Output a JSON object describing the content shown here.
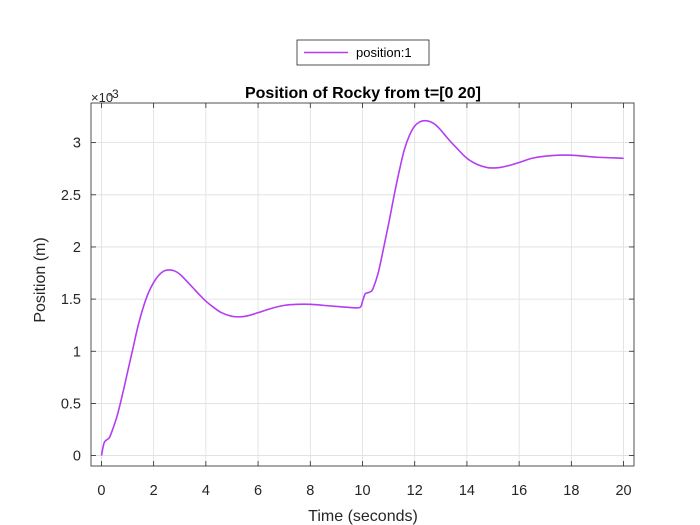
{
  "chart_data": {
    "type": "line",
    "title": "Position of Rocky from t=[0 20]",
    "xlabel": "Time (seconds)",
    "ylabel": "Position (m)",
    "y_exponent_base": "×10",
    "y_exponent_power": "-3",
    "xlim": [
      -0.4,
      20.4
    ],
    "ylim": [
      -0.1,
      3.38
    ],
    "x_ticks": [
      0,
      2,
      4,
      6,
      8,
      10,
      12,
      14,
      16,
      18,
      20
    ],
    "x_tick_labels": [
      "0",
      "2",
      "4",
      "6",
      "8",
      "10",
      "12",
      "14",
      "16",
      "18",
      "20"
    ],
    "y_ticks": [
      0,
      0.5,
      1,
      1.5,
      2,
      2.5,
      3
    ],
    "y_tick_labels": [
      "0",
      "0.5",
      "1",
      "1.5",
      "2",
      "2.5",
      "3"
    ],
    "grid": true,
    "legend_position": "top-center outside",
    "series": [
      {
        "name": "position:1",
        "color": "#b33df3",
        "x": [
          0,
          0.1,
          0.2,
          0.3,
          0.4,
          0.6,
          0.8,
          1.0,
          1.2,
          1.4,
          1.6,
          1.8,
          2.0,
          2.2,
          2.4,
          2.6,
          2.8,
          3.0,
          3.2,
          3.5,
          3.8,
          4.0,
          4.3,
          4.6,
          5.0,
          5.3,
          5.6,
          6.0,
          6.5,
          7.0,
          7.5,
          8.0,
          8.5,
          9.0,
          9.5,
          9.9,
          10.0,
          10.1,
          10.2,
          10.3,
          10.4,
          10.6,
          10.8,
          11.0,
          11.2,
          11.4,
          11.6,
          11.8,
          12.0,
          12.2,
          12.4,
          12.6,
          12.8,
          13.0,
          13.3,
          13.6,
          14.0,
          14.4,
          14.8,
          15.2,
          15.6,
          16.0,
          16.5,
          17.0,
          17.5,
          18.0,
          18.5,
          19.0,
          19.5,
          20.0
        ],
        "y": [
          0,
          0.12,
          0.15,
          0.17,
          0.23,
          0.38,
          0.58,
          0.8,
          1.02,
          1.24,
          1.42,
          1.56,
          1.66,
          1.73,
          1.77,
          1.78,
          1.77,
          1.74,
          1.69,
          1.61,
          1.53,
          1.48,
          1.42,
          1.37,
          1.335,
          1.33,
          1.34,
          1.37,
          1.41,
          1.44,
          1.45,
          1.45,
          1.44,
          1.43,
          1.42,
          1.42,
          1.48,
          1.55,
          1.56,
          1.57,
          1.6,
          1.75,
          1.98,
          2.22,
          2.48,
          2.72,
          2.93,
          3.07,
          3.16,
          3.2,
          3.21,
          3.2,
          3.17,
          3.12,
          3.03,
          2.95,
          2.85,
          2.79,
          2.76,
          2.76,
          2.78,
          2.81,
          2.85,
          2.87,
          2.88,
          2.88,
          2.87,
          2.86,
          2.855,
          2.85
        ]
      }
    ]
  }
}
